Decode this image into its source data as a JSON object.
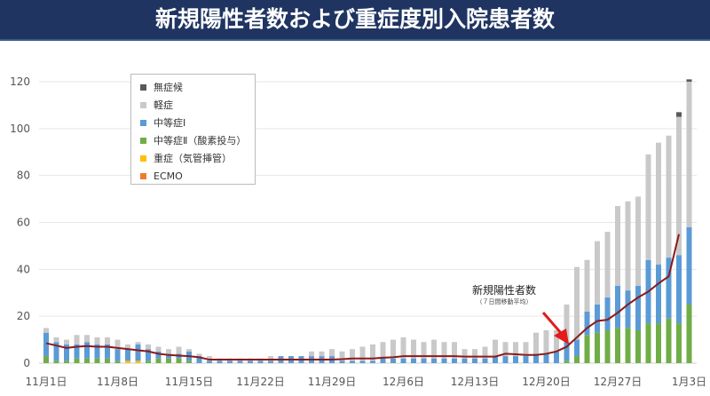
{
  "header": {
    "title": "新規陽性者数および重症度別入院患者数"
  },
  "chart_data": {
    "type": "bar",
    "stacked": true,
    "title": "新規陽性者数および重症度別入院患者数",
    "ylim": [
      0,
      120
    ],
    "yticks": [
      0,
      20,
      40,
      60,
      80,
      100,
      120
    ],
    "grid": true,
    "legend_placement": "top-left",
    "categories": [
      "11月1日",
      "11月2日",
      "11月3日",
      "11月4日",
      "11月5日",
      "11月6日",
      "11月7日",
      "11月8日",
      "11月9日",
      "11月10日",
      "11月11日",
      "11月12日",
      "11月13日",
      "11月14日",
      "11月15日",
      "11月16日",
      "11月17日",
      "11月18日",
      "11月19日",
      "11月20日",
      "11月21日",
      "11月22日",
      "11月23日",
      "11月24日",
      "11月25日",
      "11月26日",
      "11月27日",
      "11月28日",
      "11月29日",
      "11月30日",
      "12月1日",
      "12月2日",
      "12月3日",
      "12月4日",
      "12月5日",
      "12月6日",
      "12月7日",
      "12月8日",
      "12月9日",
      "12月10日",
      "12月11日",
      "12月12日",
      "12月13日",
      "12月14日",
      "12月15日",
      "12月16日",
      "12月17日",
      "12月18日",
      "12月19日",
      "12月20日",
      "12月21日",
      "12月22日",
      "12月23日",
      "12月24日",
      "12月25日",
      "12月26日",
      "12月27日",
      "12月28日",
      "12月29日",
      "12月30日",
      "12月31日",
      "1月1日",
      "1月2日",
      "1月3日"
    ],
    "xtick_labels": [
      "11月1日",
      "11月8日",
      "11月15日",
      "11月22日",
      "11月29日",
      "12月6日",
      "12月13日",
      "12月20日",
      "12月27日",
      "1月3日"
    ],
    "series": [
      {
        "name": "ECMO",
        "color": "#ed7d31",
        "values": [
          0,
          0,
          0,
          0,
          0,
          0,
          0,
          0,
          0,
          0,
          0,
          0,
          0,
          0,
          0,
          0,
          0,
          0,
          0,
          0,
          0,
          0,
          0,
          0,
          0,
          0,
          0,
          0,
          0,
          0,
          0,
          0,
          0,
          0,
          0,
          0,
          0,
          0,
          0,
          0,
          0,
          0,
          0,
          0,
          0,
          0,
          0,
          0,
          0,
          0,
          0,
          0,
          0,
          0,
          0,
          0,
          0,
          0,
          0,
          0,
          0,
          0,
          0,
          0
        ]
      },
      {
        "name": "重症（気管挿管）",
        "color": "#ffc000",
        "values": [
          0,
          0,
          0,
          0,
          0,
          0,
          0,
          0,
          1,
          1,
          0,
          0,
          0,
          0,
          0,
          0,
          0,
          0,
          0,
          0,
          0,
          0,
          0,
          0,
          0,
          0,
          0,
          0,
          0,
          0,
          0,
          0,
          0,
          0,
          0,
          0,
          0,
          0,
          0,
          0,
          0,
          0,
          0,
          0,
          0,
          0,
          0,
          0,
          0,
          0,
          0,
          0,
          0,
          0,
          0,
          0,
          0,
          0,
          0,
          0,
          0,
          0,
          0,
          0
        ]
      },
      {
        "name": "中等症Ⅱ（酸素投与）",
        "color": "#70ad47",
        "values": [
          3,
          1,
          1,
          2,
          2,
          2,
          2,
          1,
          0,
          0,
          1,
          2,
          2,
          2,
          1,
          0,
          0,
          0,
          0,
          0,
          0,
          0,
          0,
          0,
          0,
          0,
          0,
          0,
          0,
          0,
          0,
          0,
          0,
          0,
          0,
          0,
          0,
          0,
          0,
          0,
          0,
          0,
          0,
          0,
          0,
          0,
          0,
          0,
          0,
          0,
          0,
          1,
          3,
          12,
          13,
          14,
          15,
          15,
          14,
          17,
          17,
          19,
          17,
          25
        ]
      },
      {
        "name": "中等症Ⅰ",
        "color": "#5b9bd5",
        "values": [
          10,
          8,
          7,
          6,
          7,
          6,
          6,
          5,
          5,
          7,
          5,
          3,
          2,
          2,
          4,
          3,
          1,
          1,
          1,
          1,
          1,
          1,
          1,
          3,
          3,
          3,
          3,
          3,
          3,
          1,
          1,
          1,
          1,
          2,
          2,
          2,
          2,
          2,
          2,
          2,
          2,
          2,
          2,
          2,
          3,
          3,
          3,
          3,
          4,
          4,
          5,
          8,
          7,
          10,
          12,
          14,
          18,
          16,
          19,
          27,
          25,
          26,
          29,
          33
        ]
      },
      {
        "name": "軽症",
        "color": "#c9c9c9",
        "values": [
          2,
          2,
          2,
          4,
          3,
          3,
          3,
          4,
          2,
          1,
          2,
          2,
          2,
          3,
          1,
          1,
          2,
          1,
          1,
          1,
          1,
          1,
          2,
          0,
          0,
          0,
          2,
          2,
          3,
          4,
          5,
          6,
          7,
          7,
          8,
          9,
          8,
          7,
          8,
          7,
          7,
          4,
          4,
          5,
          7,
          6,
          6,
          6,
          9,
          10,
          9,
          16,
          31,
          22,
          27,
          28,
          34,
          38,
          38,
          45,
          52,
          52,
          59,
          62
        ]
      },
      {
        "name": "無症候",
        "color": "#595959",
        "values": [
          0,
          0,
          0,
          0,
          0,
          0,
          0,
          0,
          0,
          0,
          0,
          0,
          0,
          0,
          0,
          0,
          0,
          0,
          0,
          0,
          0,
          0,
          0,
          0,
          0,
          0,
          0,
          0,
          0,
          0,
          0,
          0,
          0,
          0,
          0,
          0,
          0,
          0,
          0,
          0,
          0,
          0,
          0,
          0,
          0,
          0,
          0,
          0,
          0,
          0,
          0,
          0,
          0,
          0,
          0,
          0,
          0,
          0,
          0,
          0,
          0,
          0,
          2,
          1
        ]
      }
    ],
    "line": {
      "name": "新規陽性者数",
      "subtitle": "（７日間移動平均）",
      "color": "#8b1a1a",
      "values": [
        8.5,
        7.5,
        6.5,
        7,
        7.3,
        7,
        7,
        6.5,
        6,
        5.5,
        5,
        4,
        3.5,
        3.2,
        3,
        2.5,
        1.5,
        1.5,
        1.5,
        1.5,
        1.5,
        1.5,
        1.5,
        1.5,
        1.5,
        1.5,
        1.5,
        1.5,
        1.5,
        1.7,
        2,
        2,
        2,
        2.3,
        2.5,
        3,
        3,
        3,
        3,
        3,
        3,
        2.8,
        2.8,
        2.8,
        2.8,
        4,
        3.8,
        3.5,
        3.5,
        4,
        5,
        7,
        11,
        15,
        18,
        18.5,
        21.5,
        25,
        28,
        30.5,
        34,
        37,
        55,
        null
      ]
    }
  },
  "legend": {
    "items": [
      "無症候",
      "軽症",
      "中等症Ⅰ",
      "中等症Ⅱ（酸素投与）",
      "重症（気管挿管）",
      "ECMO"
    ]
  },
  "annotation": {
    "label": "新規陽性者数",
    "sub": "（７日間移動平均）",
    "arrow_color": "#e31b1b"
  }
}
